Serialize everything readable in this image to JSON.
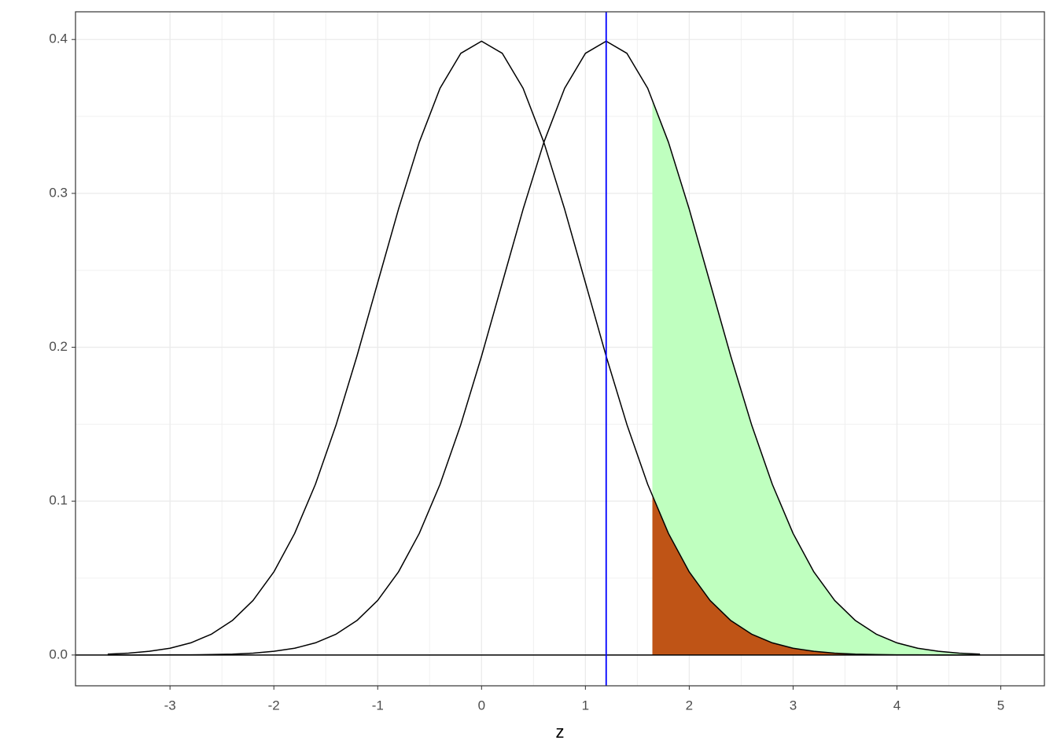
{
  "chart_data": {
    "type": "line",
    "x_label": "z",
    "xlim": [
      -3.91,
      5.42
    ],
    "ylim": [
      -0.02,
      0.418
    ],
    "xticks": [
      -3,
      -2,
      -1,
      0,
      1,
      2,
      3,
      4,
      5
    ],
    "yticks": [
      {
        "value": 0,
        "label": "0.0"
      },
      0.1,
      0.2,
      0.3,
      0.4
    ],
    "grid": true,
    "series": [
      {
        "type": "area",
        "color": "#bfffbf",
        "x": [
          1.645,
          1.8,
          2.0,
          2.2,
          2.4,
          2.6,
          2.8,
          3.0,
          3.2,
          3.4,
          3.6,
          3.8,
          4.0,
          4.2,
          4.4,
          4.6,
          4.8
        ],
        "values": [
          0.3609,
          0.3332,
          0.2897,
          0.242,
          0.1942,
          0.1497,
          0.1109,
          0.079,
          0.054,
          0.0355,
          0.0224,
          0.0136,
          0.0079,
          0.0044,
          0.0024,
          0.0012,
          0.0006
        ]
      },
      {
        "type": "area",
        "color": "#bf5416",
        "x": [
          1.645,
          1.8,
          2.0,
          2.2,
          2.4,
          2.6,
          2.8,
          3.0,
          3.2,
          3.4,
          3.6,
          3.8,
          4.0,
          4.2,
          4.4,
          4.6,
          4.8
        ],
        "values": [
          0.1031,
          0.079,
          0.054,
          0.0355,
          0.0224,
          0.0136,
          0.0079,
          0.0044,
          0.0024,
          0.0012,
          0.0006,
          0.0003,
          0.0001,
          0.0001,
          0,
          0,
          0
        ]
      },
      {
        "type": "line",
        "color": "#000000",
        "x": [
          -3.6,
          -3.4,
          -3.2,
          -3.0,
          -2.8,
          -2.6,
          -2.4,
          -2.2,
          -2.0,
          -1.8,
          -1.6,
          -1.4,
          -1.2,
          -1.0,
          -0.8,
          -0.6,
          -0.4,
          -0.2,
          0,
          0.2,
          0.4,
          0.6,
          0.8,
          1.0,
          1.2,
          1.4,
          1.6,
          1.8,
          2.0,
          2.2,
          2.4,
          2.6,
          2.8,
          3.0,
          3.2,
          3.4,
          3.6,
          3.8,
          4.0,
          4.2,
          4.4,
          4.6,
          4.8
        ],
        "values": [
          0.0006,
          0.0012,
          0.0024,
          0.0044,
          0.0079,
          0.0136,
          0.0224,
          0.0355,
          0.054,
          0.079,
          0.1109,
          0.1497,
          0.1942,
          0.242,
          0.2897,
          0.3332,
          0.3683,
          0.391,
          0.3989,
          0.391,
          0.3683,
          0.3332,
          0.2897,
          0.242,
          0.1942,
          0.1497,
          0.1109,
          0.079,
          0.054,
          0.0355,
          0.0224,
          0.0136,
          0.0079,
          0.0044,
          0.0024,
          0.0012,
          0.0006,
          0.0003,
          0.0001,
          0.0001,
          0,
          0,
          0
        ]
      },
      {
        "type": "line",
        "color": "#000000",
        "x": [
          -3.6,
          -3.4,
          -3.2,
          -3.0,
          -2.8,
          -2.6,
          -2.4,
          -2.2,
          -2.0,
          -1.8,
          -1.6,
          -1.4,
          -1.2,
          -1.0,
          -0.8,
          -0.6,
          -0.4,
          -0.2,
          0,
          0.2,
          0.4,
          0.6,
          0.8,
          1.0,
          1.2,
          1.4,
          1.6,
          1.8,
          2.0,
          2.2,
          2.4,
          2.6,
          2.8,
          3.0,
          3.2,
          3.4,
          3.6,
          3.8,
          4.0,
          4.2,
          4.4,
          4.6,
          4.8
        ],
        "values": [
          0,
          0,
          0,
          0.0001,
          0.0001,
          0.0003,
          0.0006,
          0.0012,
          0.0024,
          0.0044,
          0.0079,
          0.0136,
          0.0224,
          0.0355,
          0.054,
          0.079,
          0.1109,
          0.1497,
          0.1942,
          0.242,
          0.2897,
          0.3332,
          0.3683,
          0.391,
          0.3989,
          0.391,
          0.3683,
          0.3332,
          0.2897,
          0.242,
          0.1942,
          0.1497,
          0.1109,
          0.079,
          0.054,
          0.0355,
          0.0224,
          0.0136,
          0.0079,
          0.0044,
          0.0024,
          0.0012,
          0.0006
        ]
      }
    ],
    "reference_lines": [
      {
        "axis": "y",
        "value": 0,
        "color": "#000000"
      },
      {
        "axis": "x",
        "value": 1.2,
        "color": "#0000ff"
      }
    ]
  }
}
